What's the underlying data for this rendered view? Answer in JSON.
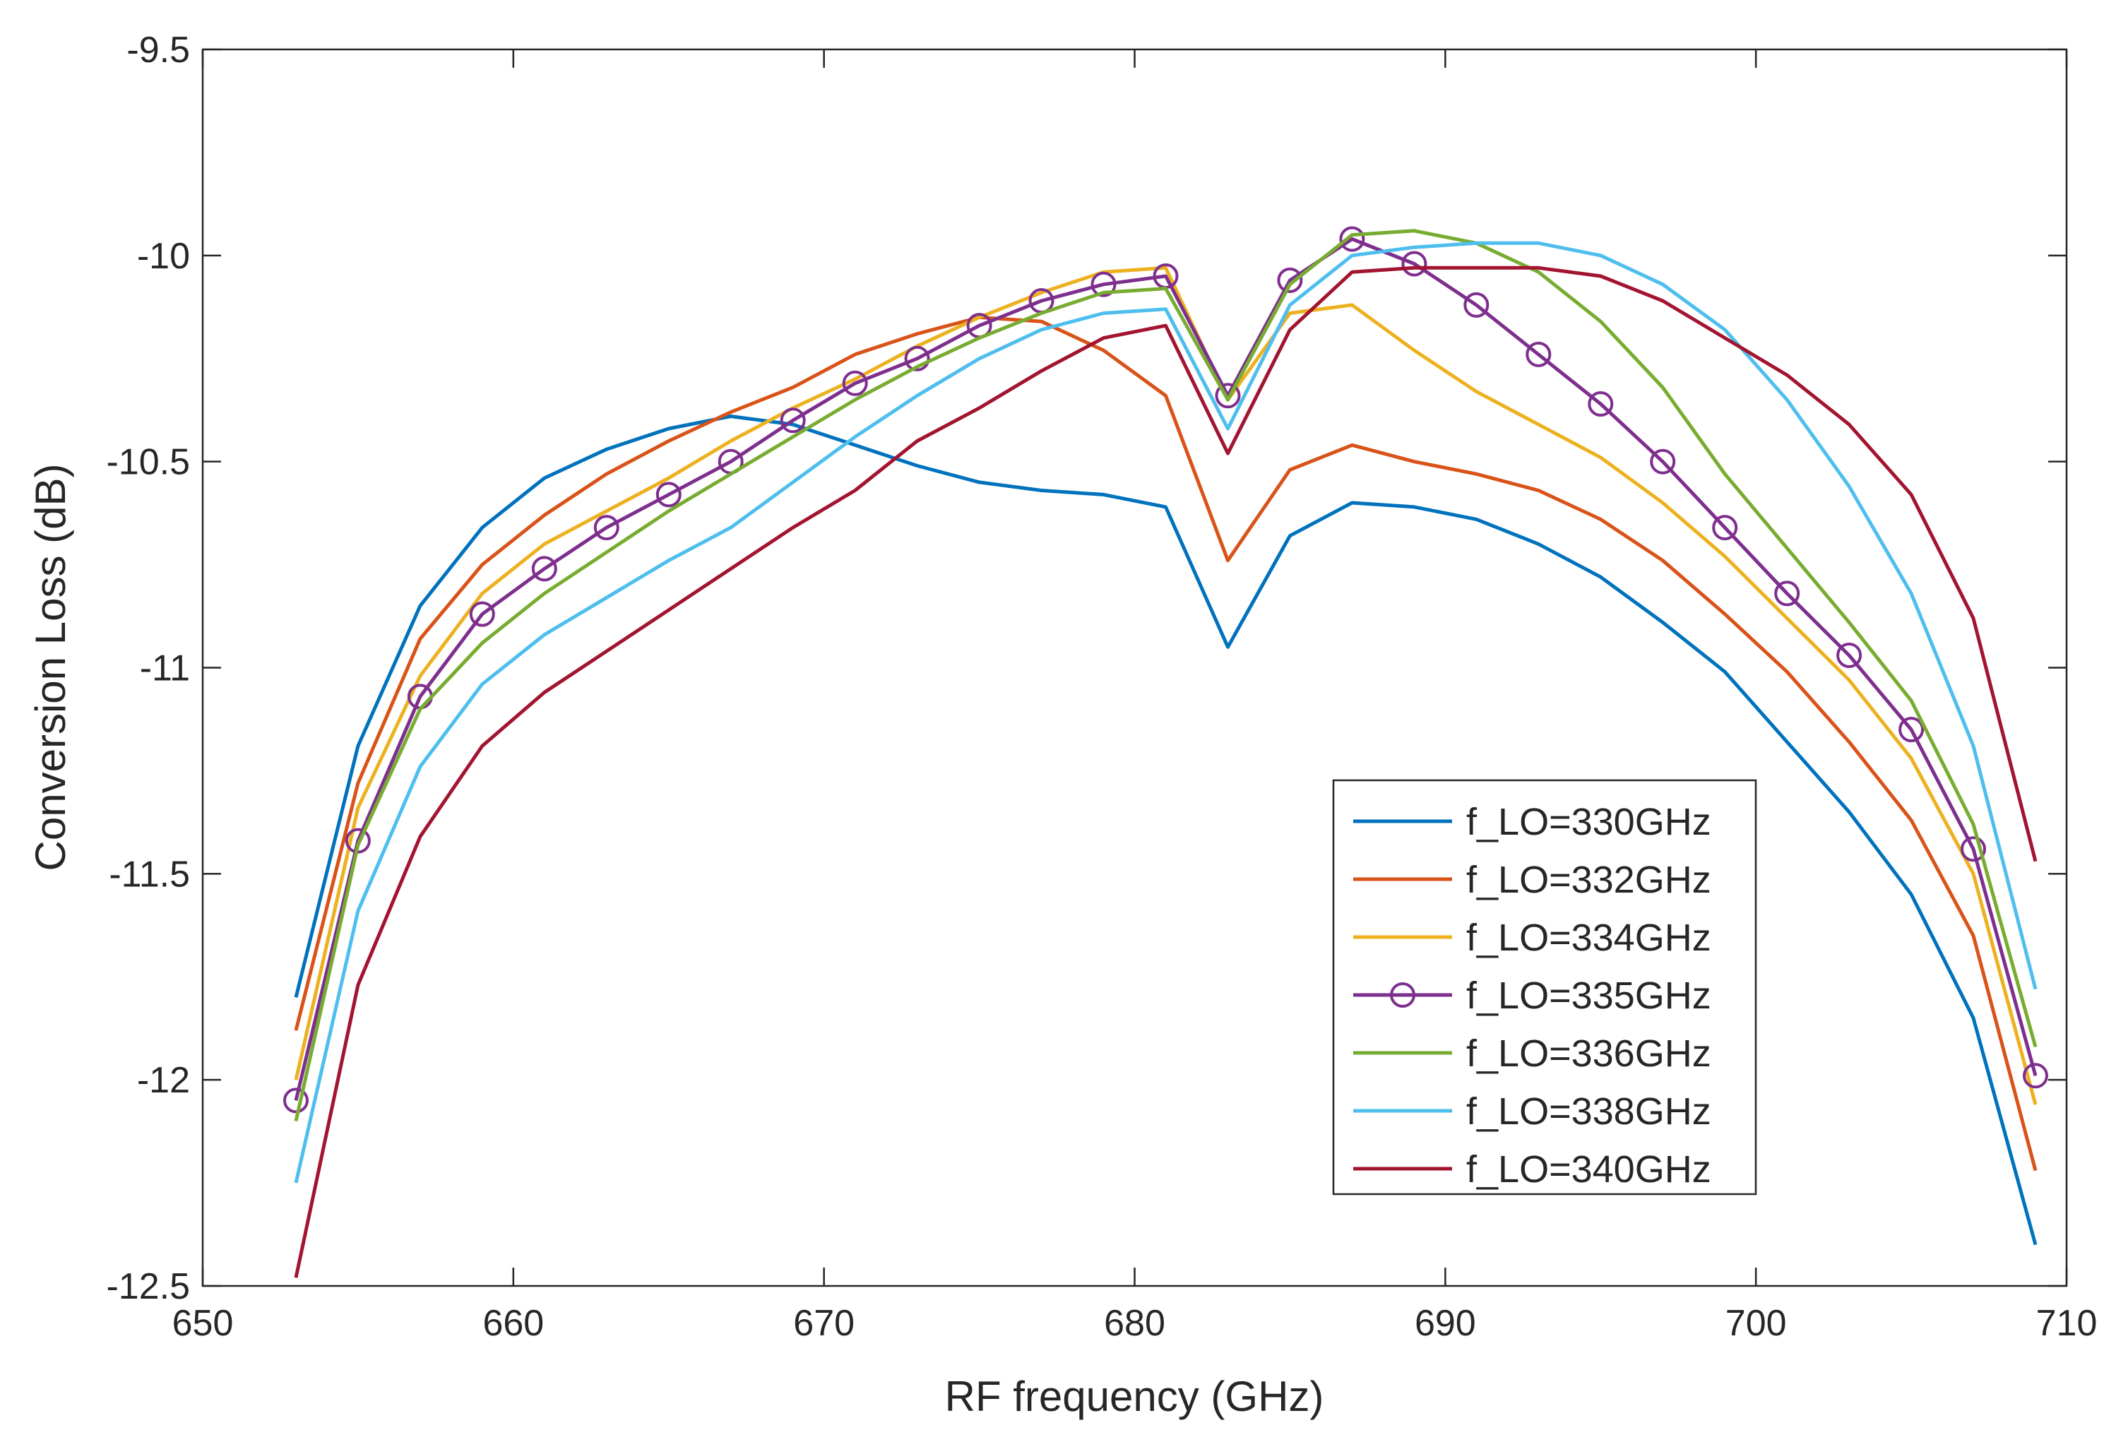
{
  "chart_data": {
    "type": "line",
    "title": "",
    "xlabel": "RF frequency (GHz)",
    "ylabel": "Conversion Loss (dB)",
    "xlim": [
      650,
      710
    ],
    "ylim": [
      -12.5,
      -9.5
    ],
    "xticks": [
      650,
      660,
      670,
      680,
      690,
      700,
      710
    ],
    "yticks": [
      -12.5,
      -12,
      -11.5,
      -11,
      -10.5,
      -10,
      -9.5
    ],
    "xtick_labels": [
      "650",
      "660",
      "670",
      "680",
      "690",
      "700",
      "710"
    ],
    "ytick_labels": [
      "-12.5",
      "-12",
      "-11.5",
      "-11",
      "-10.5",
      "-10",
      "-9.5"
    ],
    "grid": false,
    "legend_position": "lower-right",
    "x": [
      653,
      655,
      657,
      659,
      661,
      663,
      665,
      667,
      669,
      671,
      673,
      675,
      677,
      679,
      681,
      683,
      685,
      687,
      689,
      691,
      693,
      695,
      697,
      699,
      701,
      703,
      705,
      707,
      709
    ],
    "series": [
      {
        "name": "f_LO=330GHz",
        "color": "#0072BD",
        "marker": "none",
        "values": [
          -11.8,
          -11.19,
          -10.85,
          -10.66,
          -10.54,
          -10.47,
          -10.42,
          -10.39,
          -10.41,
          -10.46,
          -10.51,
          -10.55,
          -10.57,
          -10.58,
          -10.61,
          -10.95,
          -10.68,
          -10.6,
          -10.61,
          -10.64,
          -10.7,
          -10.78,
          -10.89,
          -11.01,
          -11.18,
          -11.35,
          -11.55,
          -11.85,
          -12.4
        ]
      },
      {
        "name": "f_LO=332GHz",
        "color": "#D95319",
        "marker": "none",
        "values": [
          -11.88,
          -11.28,
          -10.93,
          -10.75,
          -10.63,
          -10.53,
          -10.45,
          -10.38,
          -10.32,
          -10.24,
          -10.19,
          -10.15,
          -10.16,
          -10.23,
          -10.34,
          -10.74,
          -10.52,
          -10.46,
          -10.5,
          -10.53,
          -10.57,
          -10.64,
          -10.74,
          -10.87,
          -11.01,
          -11.18,
          -11.37,
          -11.65,
          -12.22
        ]
      },
      {
        "name": "f_LO=334GHz",
        "color": "#EDB120",
        "marker": "none",
        "values": [
          -12.0,
          -11.34,
          -11.02,
          -10.82,
          -10.7,
          -10.62,
          -10.54,
          -10.45,
          -10.37,
          -10.3,
          -10.22,
          -10.15,
          -10.09,
          -10.04,
          -10.03,
          -10.35,
          -10.14,
          -10.12,
          -10.23,
          -10.33,
          -10.41,
          -10.49,
          -10.6,
          -10.73,
          -10.88,
          -11.03,
          -11.22,
          -11.5,
          -12.06
        ]
      },
      {
        "name": "f_LO=335GHz",
        "color": "#7E2F8E",
        "marker": "circle",
        "values": [
          -12.05,
          -11.42,
          -11.07,
          -10.87,
          -10.76,
          -10.66,
          -10.58,
          -10.5,
          -10.4,
          -10.31,
          -10.25,
          -10.17,
          -10.11,
          -10.07,
          -10.05,
          -10.34,
          -10.06,
          -9.96,
          -10.02,
          -10.12,
          -10.24,
          -10.36,
          -10.5,
          -10.66,
          -10.82,
          -10.97,
          -11.15,
          -11.44,
          -11.99
        ]
      },
      {
        "name": "f_LO=336GHz",
        "color": "#77AC30",
        "marker": "none",
        "values": [
          -12.1,
          -11.43,
          -11.1,
          -10.94,
          -10.82,
          -10.72,
          -10.62,
          -10.53,
          -10.44,
          -10.35,
          -10.27,
          -10.2,
          -10.14,
          -10.09,
          -10.08,
          -10.35,
          -10.07,
          -9.95,
          -9.94,
          -9.97,
          -10.04,
          -10.16,
          -10.32,
          -10.53,
          -10.71,
          -10.89,
          -11.08,
          -11.38,
          -11.92
        ]
      },
      {
        "name": "f_LO=338GHz",
        "color": "#4DBEEE",
        "marker": "none",
        "values": [
          -12.25,
          -11.59,
          -11.24,
          -11.04,
          -10.92,
          -10.83,
          -10.74,
          -10.66,
          -10.55,
          -10.44,
          -10.34,
          -10.25,
          -10.18,
          -10.14,
          -10.13,
          -10.42,
          -10.12,
          -10.0,
          -9.98,
          -9.97,
          -9.97,
          -10.0,
          -10.07,
          -10.18,
          -10.35,
          -10.56,
          -10.82,
          -11.19,
          -11.78
        ]
      },
      {
        "name": "f_LO=340GHz",
        "color": "#A2142F",
        "marker": "none",
        "values": [
          -12.48,
          -11.77,
          -11.41,
          -11.19,
          -11.06,
          -10.96,
          -10.86,
          -10.76,
          -10.66,
          -10.57,
          -10.45,
          -10.37,
          -10.28,
          -10.2,
          -10.17,
          -10.48,
          -10.18,
          -10.04,
          -10.03,
          -10.03,
          -10.03,
          -10.05,
          -10.11,
          -10.2,
          -10.29,
          -10.41,
          -10.58,
          -10.88,
          -11.47
        ]
      }
    ]
  }
}
